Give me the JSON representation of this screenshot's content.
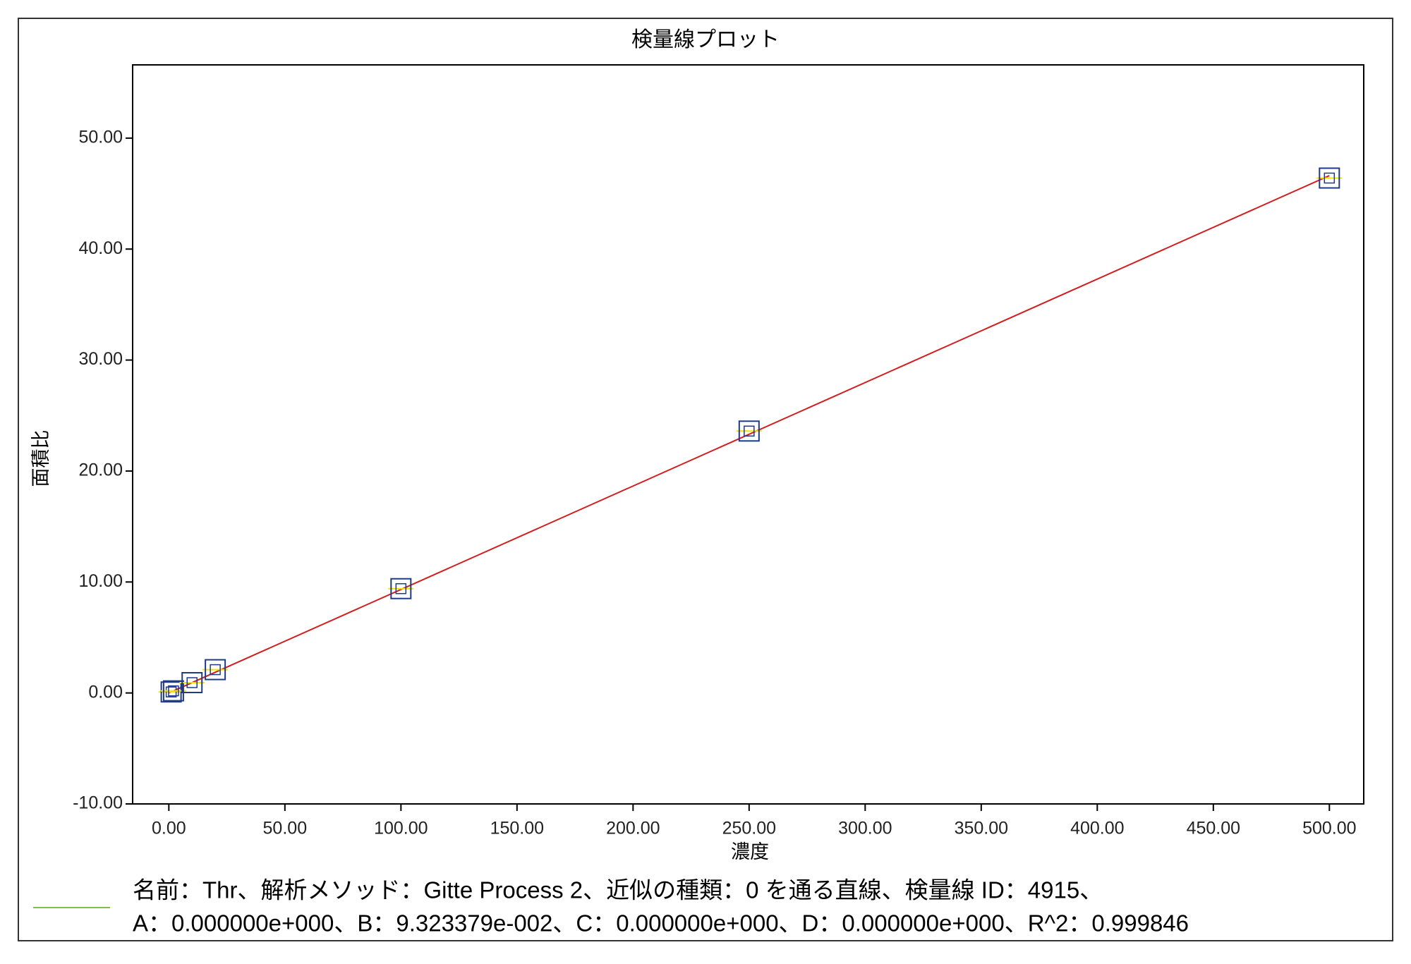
{
  "chart_data": {
    "type": "scatter",
    "title": "検量線プロット",
    "x_label": "濃度",
    "y_label": "面積比",
    "x": [
      1,
      2,
      10,
      20,
      100,
      250,
      500
    ],
    "series": [
      {
        "color": "#1f3a8a",
        "values": [
          0.09,
          0.19,
          0.93,
          2.1,
          9.4,
          23.6,
          46.4
        ]
      }
    ],
    "fit": {
      "color": "#d11f1f",
      "x": [
        0,
        500
      ],
      "values": [
        0,
        46.62
      ]
    },
    "legend_color": "#7cc24a",
    "legend_text": [
      "名前：Thr、解析メソッド：Gitte Process 2、近似の種類：0 を通る直線、検量線 ID：4915、",
      "A：0.000000e+000、B：9.323379e-002、C：0.000000e+000、D：0.000000e+000、R^2：0.999846"
    ],
    "xlim": [
      -15.6,
      514.8
    ],
    "ylim": [
      -10,
      56.6
    ],
    "xticks": [
      {
        "value": 0,
        "label": "0.00"
      },
      {
        "value": 50,
        "label": "50.00"
      },
      {
        "value": 100,
        "label": "100.00"
      },
      {
        "value": 150,
        "label": "150.00"
      },
      {
        "value": 200,
        "label": "200.00"
      },
      {
        "value": 250,
        "label": "250.00"
      },
      {
        "value": 300,
        "label": "300.00"
      },
      {
        "value": 350,
        "label": "350.00"
      },
      {
        "value": 400,
        "label": "400.00"
      },
      {
        "value": 450,
        "label": "450.00"
      },
      {
        "value": 500,
        "label": "500.00"
      }
    ],
    "yticks": [
      {
        "value": -10,
        "label": "-10.00"
      },
      {
        "value": 0,
        "label": "0.00"
      },
      {
        "value": 10,
        "label": "10.00"
      },
      {
        "value": 20,
        "label": "20.00"
      },
      {
        "value": 30,
        "label": "30.00"
      },
      {
        "value": 40,
        "label": "40.00"
      },
      {
        "value": 50,
        "label": "50.00"
      }
    ]
  }
}
